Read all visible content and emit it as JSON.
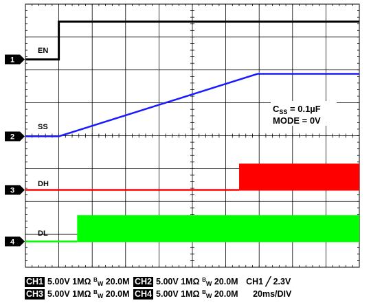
{
  "chart_data": {
    "type": "line",
    "title": "",
    "x_time_per_div_ms": 20,
    "x_divisions": 10,
    "y_divisions": 8,
    "x_range_ms": [
      0,
      200
    ],
    "grid": true,
    "series": [
      {
        "name": "EN",
        "channel": 1,
        "color": "#000000",
        "points_ms_div": [
          [
            0,
            0.0
          ],
          [
            20,
            0.0
          ],
          [
            20,
            1.15
          ],
          [
            200,
            1.15
          ]
        ]
      },
      {
        "name": "SS",
        "channel": 2,
        "color": "#1a1aff",
        "points_ms_div": [
          [
            0,
            0.0
          ],
          [
            20,
            0.0
          ],
          [
            139,
            1.9
          ],
          [
            200,
            1.9
          ]
        ]
      },
      {
        "name": "DH",
        "channel": 3,
        "color": "#ff0000",
        "switching_start_ms": 128,
        "band_div": [
          0.0,
          0.8
        ]
      },
      {
        "name": "DL",
        "channel": 4,
        "color": "#00ff00",
        "switching_start_ms": 31,
        "band_div": [
          0.0,
          0.8
        ]
      }
    ],
    "annotation": {
      "line1_main": "C",
      "line1_sub": "SS",
      "line1_rest": " = 0.1µF",
      "line2": "MODE = 0V"
    }
  },
  "markers": [
    "1",
    "2",
    "3",
    "4"
  ],
  "trace_labels": {
    "en": "EN",
    "ss": "SS",
    "dh": "DH",
    "dl": "DL"
  },
  "footer": {
    "row1": {
      "ch1_tag": "CH1",
      "ch1_settings": "5.00V 1MΩ",
      "ch1_bw_b": "B",
      "ch1_bw_w": "W",
      "ch1_bw_val": "20.0M",
      "ch2_tag": "CH2",
      "ch2_settings": "5.00V 1MΩ",
      "ch2_bw_b": "B",
      "ch2_bw_w": "W",
      "ch2_bw_val": "20.0M",
      "trigger_text": "CH1",
      "trigger_symbol": "╱",
      "trigger_level": "2.3V"
    },
    "row2": {
      "ch3_tag": "CH3",
      "ch3_settings": "5.00V 1MΩ",
      "ch3_bw_b": "B",
      "ch3_bw_w": "W",
      "ch3_bw_val": "20.0M",
      "ch4_tag": "CH4",
      "ch4_settings": "5.00V 1MΩ",
      "ch4_bw_b": "B",
      "ch4_bw_w": "W",
      "ch4_bw_val": "20.0M",
      "timebase": "20ms/DIV"
    }
  }
}
